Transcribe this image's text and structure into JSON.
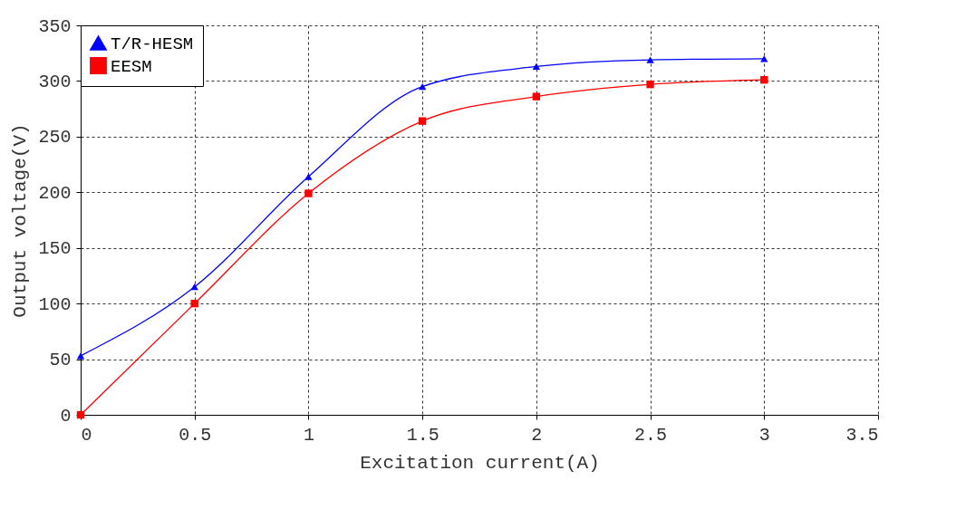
{
  "chart_data": {
    "type": "line",
    "xlabel": "Excitation current(A)",
    "ylabel": "Output voltage(V)",
    "x": [
      0,
      0.5,
      1,
      1.5,
      2,
      2.5,
      3
    ],
    "series": [
      {
        "name": "T/R-HESM",
        "color": "#0000ff",
        "marker": "triangle",
        "values": [
          53,
          115,
          214,
          295,
          313,
          319,
          320
        ]
      },
      {
        "name": "EESM",
        "color": "#ff0000",
        "marker": "square",
        "values": [
          0,
          100,
          199,
          264,
          286,
          297,
          301
        ]
      }
    ],
    "xlim": [
      0,
      3.5
    ],
    "xticks": [
      0,
      0.5,
      1,
      1.5,
      2,
      2.5,
      3,
      3.5
    ],
    "ylim": [
      0,
      350
    ],
    "yticks": [
      0,
      50,
      100,
      150,
      200,
      250,
      300,
      350
    ],
    "grid": true,
    "legend": "top left",
    "line_style": "solid"
  }
}
